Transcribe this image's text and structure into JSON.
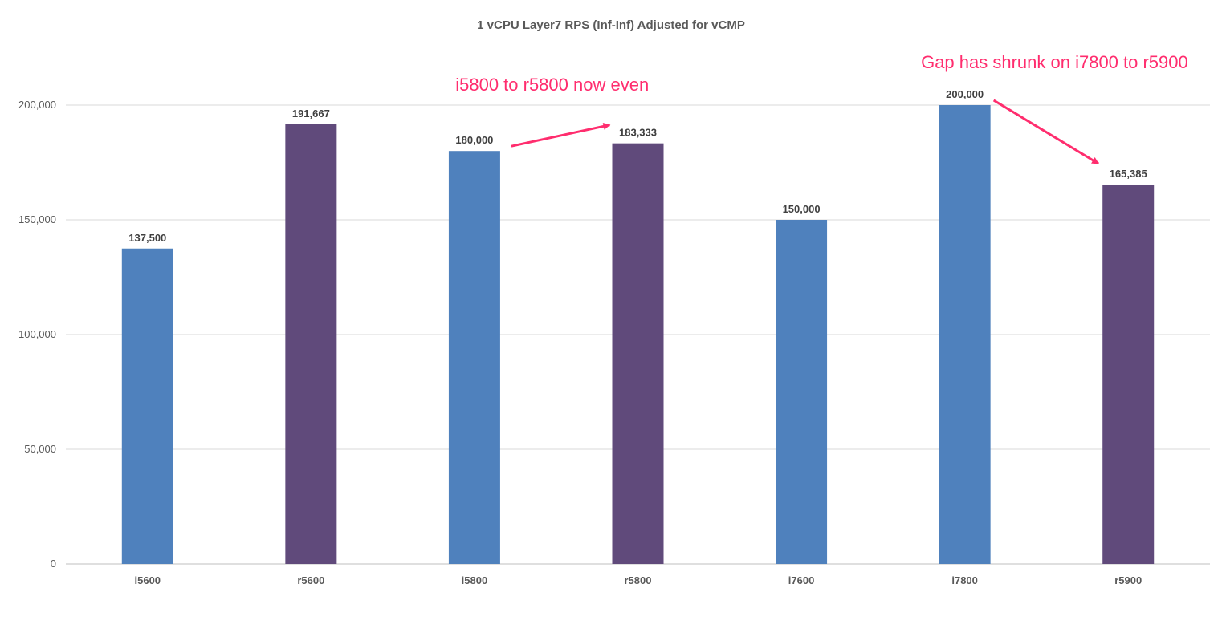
{
  "chart_data": {
    "type": "bar",
    "title": "1 vCPU Layer7 RPS (Inf-Inf) Adjusted for vCMP",
    "xlabel": "",
    "ylabel": "",
    "categories": [
      "i5600",
      "r5600",
      "i5800",
      "r5800",
      "i7600",
      "i7800",
      "r5900"
    ],
    "values": [
      137500,
      191667,
      180000,
      183333,
      150000,
      200000,
      165385
    ],
    "value_labels": [
      "137,500",
      "191,667",
      "180,000",
      "183,333",
      "150,000",
      "200,000",
      "165,385"
    ],
    "bar_colors": [
      "#4f81bd",
      "#604a7b",
      "#4f81bd",
      "#604a7b",
      "#4f81bd",
      "#4f81bd",
      "#604a7b"
    ],
    "ylim": [
      0,
      200000
    ],
    "yticks": [
      0,
      50000,
      100000,
      150000,
      200000
    ],
    "ytick_labels": [
      "0",
      "50,000",
      "100,000",
      "150,000",
      "200,000"
    ],
    "grid": true,
    "legend": "none",
    "annotations": [
      {
        "text": "i5800 to r5800 now even",
        "color": "#ff2d6e",
        "from_category": "i5800",
        "to_category": "r5800"
      },
      {
        "text": "Gap has shrunk on i7800 to r5900",
        "color": "#ff2d6e",
        "from_category": "i7800",
        "to_category": "r5900"
      }
    ]
  }
}
